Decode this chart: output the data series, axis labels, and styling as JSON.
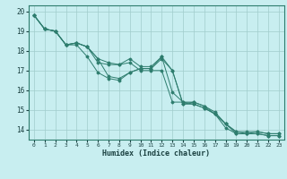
{
  "xlabel": "Humidex (Indice chaleur)",
  "bg_color": "#c8eef0",
  "grid_color": "#a0cccc",
  "line_color": "#2e7d6e",
  "xlim": [
    -0.5,
    23.5
  ],
  "ylim": [
    13.5,
    20.3
  ],
  "yticks": [
    14,
    15,
    16,
    17,
    18,
    19,
    20
  ],
  "xticks": [
    0,
    1,
    2,
    3,
    4,
    5,
    6,
    7,
    8,
    9,
    10,
    11,
    12,
    13,
    14,
    15,
    16,
    17,
    18,
    19,
    20,
    21,
    22,
    23
  ],
  "series": [
    [
      19.8,
      19.1,
      19.0,
      18.3,
      18.3,
      17.7,
      16.9,
      16.6,
      16.5,
      16.9,
      17.1,
      17.1,
      17.6,
      17.0,
      15.3,
      15.3,
      15.1,
      14.8,
      14.3,
      13.8,
      13.8,
      13.8,
      13.7,
      13.7
    ],
    [
      19.8,
      19.1,
      19.0,
      18.3,
      18.4,
      18.2,
      17.4,
      17.3,
      17.3,
      17.4,
      17.0,
      17.0,
      17.0,
      15.4,
      15.4,
      15.3,
      15.1,
      14.8,
      14.3,
      13.9,
      13.9,
      13.9,
      13.8,
      13.8
    ],
    [
      19.8,
      19.1,
      19.0,
      18.3,
      18.4,
      18.2,
      17.6,
      17.4,
      17.3,
      17.6,
      17.2,
      17.2,
      17.7,
      15.9,
      15.4,
      15.4,
      15.2,
      14.9,
      14.3,
      13.9,
      13.8,
      13.8,
      13.7,
      13.7
    ],
    [
      19.8,
      19.1,
      19.0,
      18.3,
      18.4,
      18.2,
      17.6,
      16.7,
      16.6,
      16.9,
      17.1,
      17.1,
      17.7,
      17.0,
      15.3,
      15.4,
      15.2,
      14.8,
      14.1,
      13.8,
      13.8,
      13.9,
      13.8,
      13.8
    ]
  ]
}
